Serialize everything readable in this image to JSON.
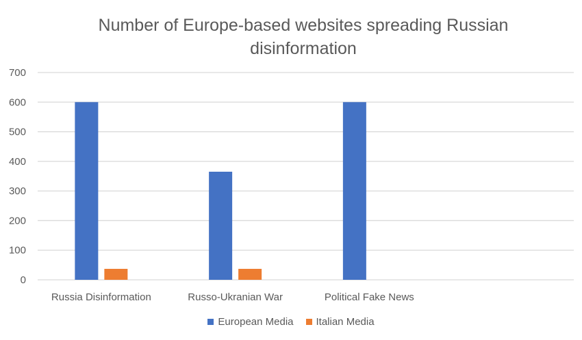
{
  "chart_data": {
    "type": "bar",
    "title_lines": [
      "Number of Europe-based websites spreading Russian",
      "disinformation"
    ],
    "categories": [
      "Russia Disinformation",
      "Russo-Ukranian War",
      "Political Fake News",
      ""
    ],
    "series": [
      {
        "name": "European Media",
        "color": "#4472C4",
        "values": [
          600,
          365,
          600,
          null
        ]
      },
      {
        "name": "Italian Media",
        "color": "#ED7D31",
        "values": [
          37,
          37,
          null,
          null
        ]
      }
    ],
    "ylim": [
      0,
      700
    ],
    "yticks": [
      0,
      100,
      200,
      300,
      400,
      500,
      600,
      700
    ],
    "grid": true,
    "legend": "bottom",
    "xlabel": "",
    "ylabel": ""
  }
}
